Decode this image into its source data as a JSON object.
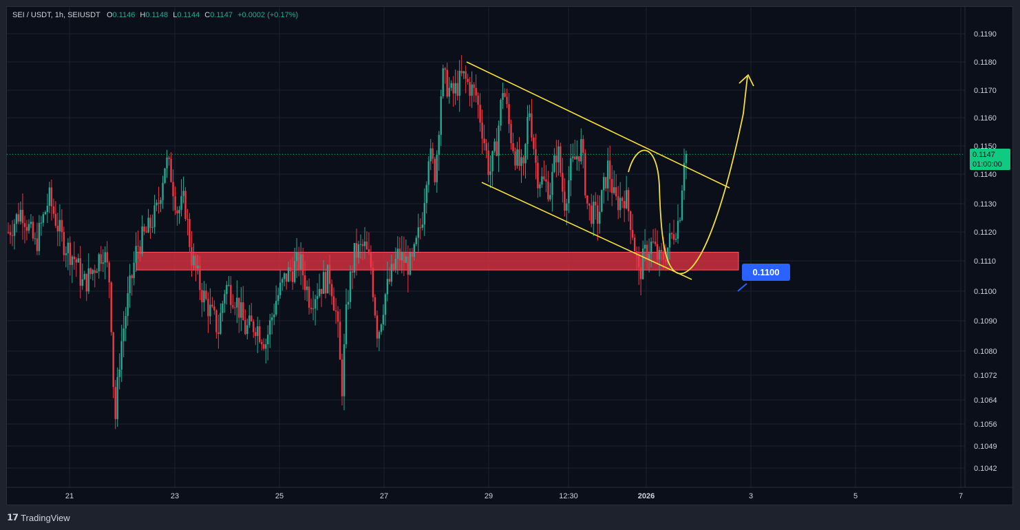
{
  "header": {
    "symbol": "SEI / USDT, 1h, SEIUSDT",
    "open_label": "O",
    "open": "0.1146",
    "high_label": "H",
    "high": "0.1148",
    "low_label": "L",
    "low": "0.1144",
    "close_label": "C",
    "close": "0.1147",
    "change": "+0.0002 (+0.17%)"
  },
  "price_badge": {
    "price": "0.1147",
    "countdown": "01:00:00"
  },
  "level_badge": {
    "label": "0.1100"
  },
  "footer": {
    "brand": "TradingView"
  },
  "colors": {
    "up": "#22ab94",
    "down": "#f23645",
    "drawing": "#f7e33a",
    "zone": "#cf2f3f",
    "badge": "#2962ff",
    "price_line": "#0ecb81"
  },
  "chart_data": {
    "type": "candlestick",
    "title": "SEI / USDT, 1h, SEIUSDT",
    "y_axis": {
      "ticks": [
        "0.1190",
        "0.1180",
        "0.1170",
        "0.1160",
        "0.1150",
        "0.1140",
        "0.1130",
        "0.1120",
        "0.1110",
        "0.1100",
        "0.1090",
        "0.1080",
        "0.1072",
        "0.1064",
        "0.1056",
        "0.1049",
        "0.1042"
      ]
    },
    "x_axis": {
      "ticks": [
        {
          "label": "21",
          "bold": false
        },
        {
          "label": "23",
          "bold": false
        },
        {
          "label": "25",
          "bold": false
        },
        {
          "label": "27",
          "bold": false
        },
        {
          "label": "29",
          "bold": false
        },
        {
          "label": "12:30",
          "bold": false
        },
        {
          "label": "2026",
          "bold": true
        },
        {
          "label": "3",
          "bold": false
        },
        {
          "label": "5",
          "bold": false
        },
        {
          "label": "7",
          "bold": false
        }
      ]
    },
    "current_price": 0.1147,
    "support_zone": {
      "low": 0.1107,
      "high": 0.1113
    },
    "key_level": 0.11,
    "price_path": [
      [
        0,
        0.112
      ],
      [
        20,
        0.1128
      ],
      [
        40,
        0.1115
      ],
      [
        60,
        0.1132
      ],
      [
        80,
        0.1117
      ],
      [
        100,
        0.111
      ],
      [
        110,
        0.1102
      ],
      [
        120,
        0.1105
      ],
      [
        140,
        0.1114
      ],
      [
        150,
        0.1103
      ],
      [
        155,
        0.107
      ],
      [
        158,
        0.1058
      ],
      [
        165,
        0.108
      ],
      [
        175,
        0.1095
      ],
      [
        190,
        0.1115
      ],
      [
        205,
        0.112
      ],
      [
        220,
        0.1128
      ],
      [
        232,
        0.1145
      ],
      [
        240,
        0.114
      ],
      [
        250,
        0.1127
      ],
      [
        260,
        0.1131
      ],
      [
        270,
        0.1112
      ],
      [
        285,
        0.11
      ],
      [
        300,
        0.1092
      ],
      [
        310,
        0.1087
      ],
      [
        320,
        0.1102
      ],
      [
        335,
        0.1098
      ],
      [
        350,
        0.1087
      ],
      [
        365,
        0.1089
      ],
      [
        380,
        0.1083
      ],
      [
        395,
        0.1097
      ],
      [
        410,
        0.1105
      ],
      [
        430,
        0.111
      ],
      [
        445,
        0.1097
      ],
      [
        460,
        0.1102
      ],
      [
        475,
        0.1105
      ],
      [
        485,
        0.109
      ],
      [
        492,
        0.1067
      ],
      [
        500,
        0.1097
      ],
      [
        510,
        0.1112
      ],
      [
        525,
        0.1115
      ],
      [
        535,
        0.1108
      ],
      [
        545,
        0.1085
      ],
      [
        555,
        0.1098
      ],
      [
        575,
        0.1112
      ],
      [
        595,
        0.1108
      ],
      [
        610,
        0.1124
      ],
      [
        620,
        0.1148
      ],
      [
        630,
        0.114
      ],
      [
        640,
        0.1175
      ],
      [
        655,
        0.1168
      ],
      [
        670,
        0.1175
      ],
      [
        690,
        0.1168
      ],
      [
        700,
        0.1155
      ],
      [
        710,
        0.114
      ],
      [
        720,
        0.115
      ],
      [
        730,
        0.1172
      ],
      [
        740,
        0.1155
      ],
      [
        750,
        0.1145
      ],
      [
        760,
        0.114
      ],
      [
        768,
        0.1165
      ],
      [
        780,
        0.114
      ],
      [
        790,
        0.1137
      ],
      [
        800,
        0.1135
      ],
      [
        810,
        0.115
      ],
      [
        820,
        0.113
      ],
      [
        830,
        0.1142
      ],
      [
        845,
        0.115
      ],
      [
        855,
        0.1128
      ],
      [
        870,
        0.1125
      ],
      [
        885,
        0.1143
      ],
      [
        895,
        0.113
      ],
      [
        910,
        0.1133
      ],
      [
        920,
        0.1122
      ],
      [
        930,
        0.1105
      ],
      [
        940,
        0.1113
      ],
      [
        950,
        0.1116
      ],
      [
        960,
        0.111
      ],
      [
        968,
        0.1112
      ],
      [
        978,
        0.1118
      ],
      [
        990,
        0.1125
      ],
      [
        998,
        0.115
      ],
      [
        1000,
        0.1147
      ]
    ],
    "drawings": [
      {
        "type": "trendline",
        "from": [
          0.118
        ],
        "to": [
          0.1136
        ]
      },
      {
        "type": "trendline",
        "from": [
          0.1138
        ],
        "to": [
          0.1104
        ]
      },
      {
        "type": "curve-arrow",
        "target": "up"
      }
    ]
  }
}
